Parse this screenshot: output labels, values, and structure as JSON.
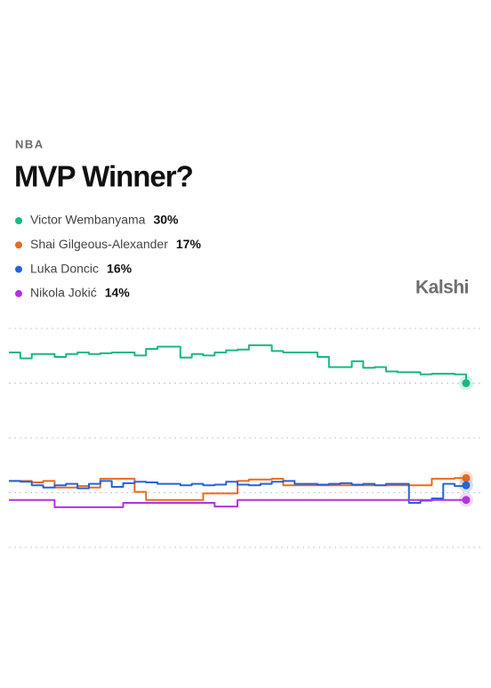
{
  "header": {
    "league": "NBA",
    "brand": "Kalshi"
  },
  "chart_data": {
    "type": "line",
    "title": "MVP Winner?",
    "ylim": [
      7.5,
      37.5
    ],
    "yticks": [
      7.5,
      15,
      22.5,
      30,
      37.5
    ],
    "grid": true,
    "series": [
      {
        "name": "Victor Wembanyama",
        "color": "#17b883",
        "current_label": "30%",
        "values": [
          34.2,
          33.4,
          34.0,
          34.0,
          33.6,
          34.0,
          34.2,
          34.0,
          34.1,
          34.2,
          34.2,
          33.8,
          34.7,
          35.0,
          35.0,
          33.5,
          34.0,
          33.8,
          34.2,
          34.5,
          34.6,
          35.2,
          35.2,
          34.4,
          34.2,
          34.2,
          34.2,
          33.6,
          32.2,
          32.2,
          33.0,
          32.1,
          32.2,
          31.6,
          31.5,
          31.5,
          31.2,
          31.3,
          31.3,
          31.2,
          30
        ]
      },
      {
        "name": "Shai Gilgeous-Alexander",
        "color": "#ea6a1f",
        "current_label": "17%",
        "values": [
          16.6,
          16.6,
          16.4,
          16.6,
          15.7,
          15.7,
          15.9,
          15.7,
          16.9,
          16.9,
          16.9,
          15.1,
          14.0,
          14.0,
          14.0,
          14.0,
          14.0,
          14.9,
          14.9,
          14.9,
          16.6,
          16.8,
          16.8,
          16.9,
          16.0,
          16.0,
          16.0,
          16.0,
          16.0,
          16.0,
          16.0,
          16.0,
          16.0,
          16.0,
          16.0,
          16.0,
          16.0,
          16.9,
          16.9,
          17.0,
          17
        ]
      },
      {
        "name": "Luka Doncic",
        "color": "#2563d9",
        "current_label": "16%",
        "values": [
          16.6,
          16.5,
          16.0,
          15.7,
          16.0,
          16.2,
          15.6,
          16.2,
          16.6,
          15.8,
          16.3,
          16.5,
          16.4,
          16.2,
          16.2,
          16.0,
          16.2,
          16.0,
          16.1,
          16.5,
          16.1,
          16.0,
          16.2,
          16.5,
          16.6,
          16.2,
          16.2,
          16.1,
          16.2,
          16.3,
          16.1,
          16.2,
          16.0,
          16.2,
          16.2,
          13.6,
          13.9,
          14.2,
          16.2,
          15.9,
          16
        ]
      },
      {
        "name": "Nikola Jokić",
        "color": "#b133e0",
        "current_label": "14%",
        "values": [
          14.0,
          14.0,
          14.0,
          14.0,
          13.0,
          13.0,
          13.0,
          13.0,
          13.0,
          13.0,
          13.6,
          13.6,
          13.6,
          13.6,
          13.6,
          13.6,
          13.6,
          13.6,
          13.1,
          13.1,
          14.0,
          14.0,
          14.0,
          14.0,
          14.0,
          14.0,
          14.0,
          14.0,
          14.0,
          14.0,
          14.0,
          14.0,
          14.0,
          14.0,
          14.0,
          14.0,
          14.0,
          14.0,
          14.0,
          14.0,
          14
        ]
      }
    ]
  }
}
